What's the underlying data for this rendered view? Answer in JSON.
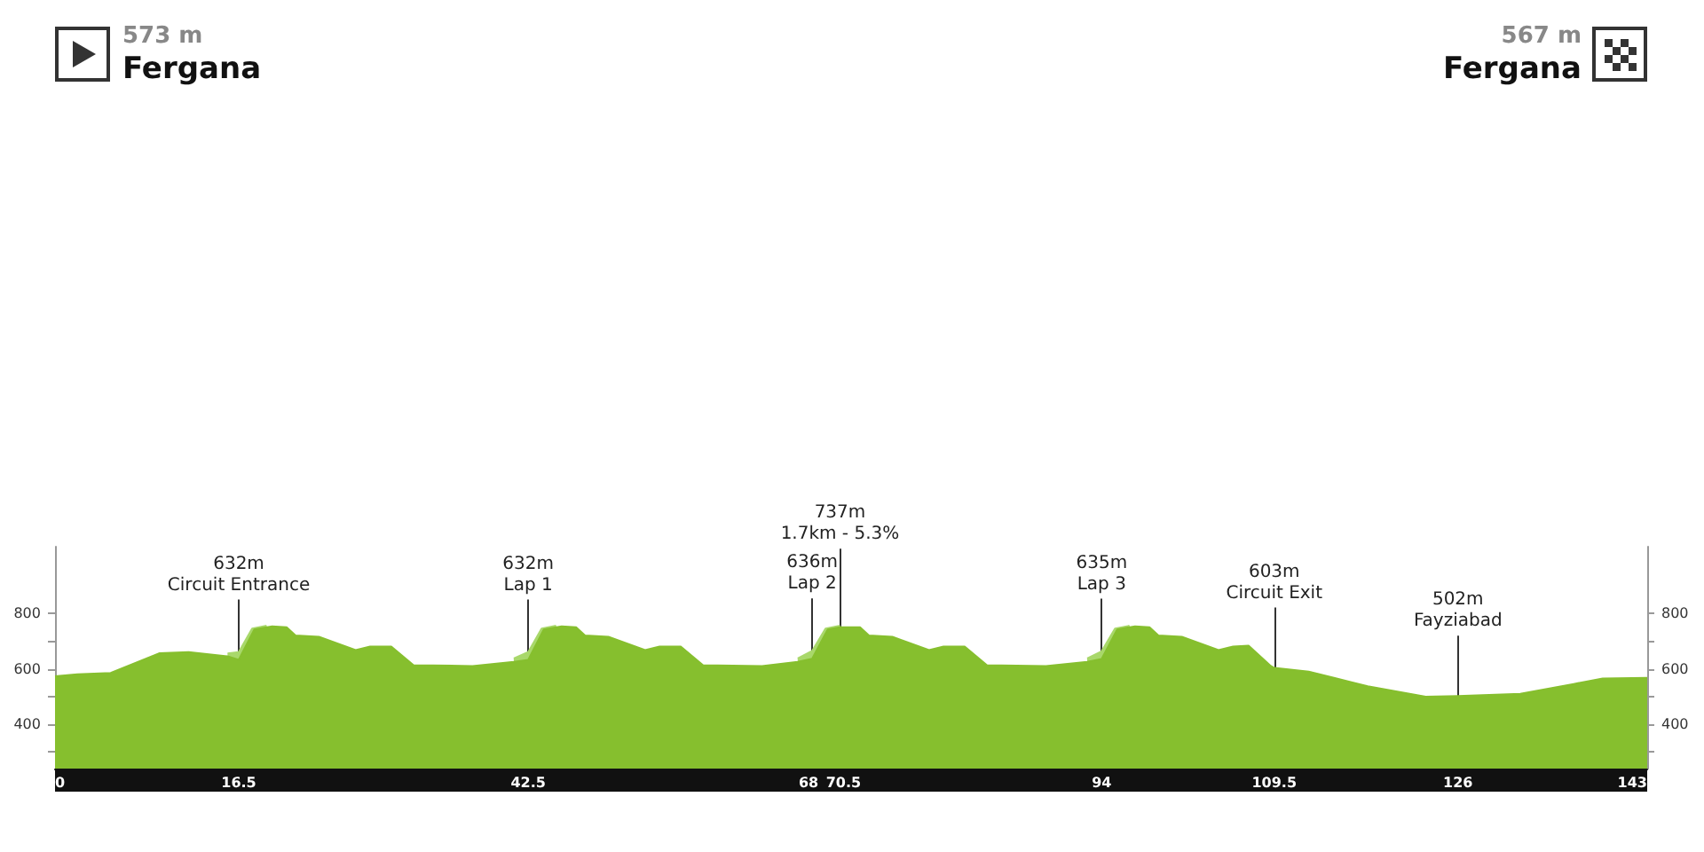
{
  "chart_data": {
    "type": "area",
    "annotations": [
      "573 m",
      "Fergana",
      "567 m",
      "Fergana"
    ],
    "series": [
      {
        "color": "#86bf2e",
        "x": [
          0,
          2,
          5,
          9.4,
          12,
          15.5,
          16.5,
          17.9,
          19.5,
          20.8,
          21.6,
          23.7,
          27,
          28.3,
          30.2,
          32.2,
          37.5,
          41.2,
          42.5,
          43.9,
          45.5,
          46.8,
          47.6,
          49.7,
          53,
          54.3,
          56.2,
          58.2,
          63.5,
          66.7,
          68,
          69.4,
          70.5,
          72.3,
          73.1,
          75.2,
          78.5,
          79.8,
          81.7,
          83.7,
          89,
          92.7,
          94,
          95.4,
          97,
          98.3,
          99.1,
          101.2,
          104.5,
          105.8,
          107.2,
          109.2,
          109.5,
          112.6,
          117.9,
          123.1,
          126,
          131.6,
          136.4,
          139,
          143
        ],
        "values": [
          573,
          580,
          585,
          656,
          660,
          645,
          632,
          742,
          753,
          750,
          720,
          715,
          667,
          680,
          680,
          613,
          610,
          625,
          632,
          742,
          753,
          750,
          720,
          715,
          667,
          680,
          680,
          613,
          610,
          625,
          636,
          742,
          750,
          750,
          720,
          715,
          667,
          680,
          680,
          613,
          610,
          625,
          635,
          742,
          753,
          750,
          720,
          715,
          667,
          680,
          683,
          610,
          603,
          590,
          537,
          499,
          502,
          510,
          545,
          565,
          567
        ]
      },
      {
        "color": "#a9d86b",
        "x": [
          15.5,
          16.5,
          17.7,
          19,
          19.6,
          41.2,
          42.5,
          43.7,
          45,
          45.6,
          66.7,
          68,
          69.2,
          70.5,
          71,
          92.7,
          94,
          95.2,
          96.5
        ],
        "values": [
          655,
          660,
          745,
          755,
          null,
          637,
          660,
          745,
          755,
          null,
          637,
          664,
          745,
          755,
          null,
          637,
          663,
          745,
          755
        ]
      }
    ],
    "ref_lines": [
      {
        "axis": "x",
        "value": 16.5,
        "label": "632m\nCircuit Entrance"
      },
      {
        "axis": "x",
        "value": 42.5,
        "label": "632m\nLap 1"
      },
      {
        "axis": "x",
        "value": 68,
        "label": "636m\nLap 2"
      },
      {
        "axis": "x",
        "value": 70.5,
        "label": "737m\n1.7km - 5.3%"
      },
      {
        "axis": "x",
        "value": 94,
        "label": "635m\nLap 3"
      },
      {
        "axis": "x",
        "value": 109.5,
        "label": "603m\nCircuit Exit"
      },
      {
        "axis": "x",
        "value": 126,
        "label": "502m\nFayziabad"
      }
    ],
    "xlim": [
      0,
      143
    ],
    "xticks": [
      0,
      16.5,
      42.5,
      68,
      70.5,
      94,
      109.5,
      126,
      143
    ],
    "ylim": [
      240,
      1040
    ],
    "yticks": [
      {
        "value": 300,
        "label": null
      },
      400,
      {
        "value": 500,
        "label": null
      },
      600,
      {
        "value": 700,
        "label": null
      },
      800
    ],
    "y2lim": [
      240,
      1040
    ],
    "y2ticks": [
      {
        "value": 300,
        "label": null
      },
      400,
      {
        "value": 500,
        "label": null
      },
      600,
      {
        "value": 700,
        "label": null
      },
      800
    ],
    "grid": false,
    "marker": "none"
  }
}
